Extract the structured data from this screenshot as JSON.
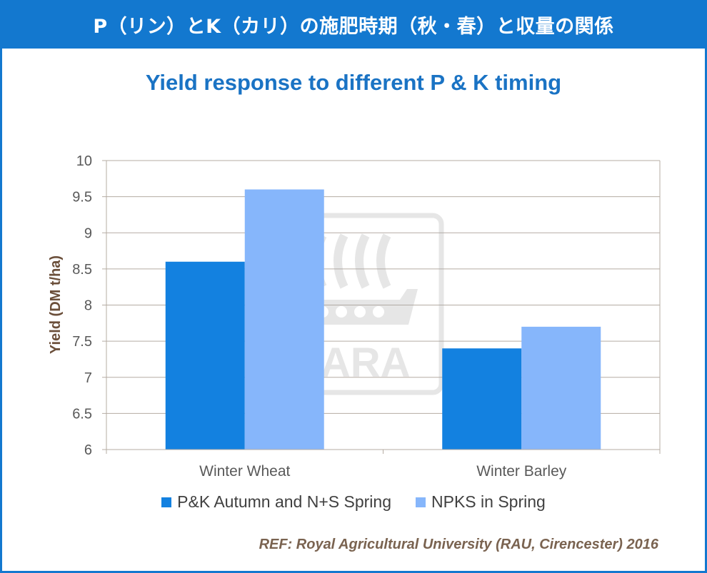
{
  "header": {
    "title": "P（リン）とK（カリ）の施肥時期（秋・春）と収量の関係"
  },
  "chart_data": {
    "type": "bar",
    "title": "Yield response to different P & K timing",
    "ylabel": "Yield (DM t/ha)",
    "xlabel": "",
    "ylim": [
      6,
      10
    ],
    "yticks": [
      "6",
      "6.5",
      "7",
      "7.5",
      "8",
      "8.5",
      "9",
      "9.5",
      "10"
    ],
    "ytick_values": [
      6,
      6.5,
      7,
      7.5,
      8,
      8.5,
      9,
      9.5,
      10
    ],
    "grid": true,
    "legend_position": "bottom",
    "categories": [
      "Winter Wheat",
      "Winter Barley"
    ],
    "series": [
      {
        "name": "P&K Autumn and N+S Spring",
        "values": [
          8.6,
          7.4
        ],
        "color": "#1381e0"
      },
      {
        "name": "NPKS in Spring",
        "values": [
          9.6,
          7.7
        ],
        "color": "#86b6fb"
      }
    ]
  },
  "watermark": {
    "text": "YARA"
  },
  "reference": {
    "text": "REF: Royal Agricultural University (RAU, Cirencester) 2016"
  },
  "colors": {
    "header_bg": "#1378cf",
    "title": "#1a73c4",
    "grid": "#b5aca3"
  }
}
